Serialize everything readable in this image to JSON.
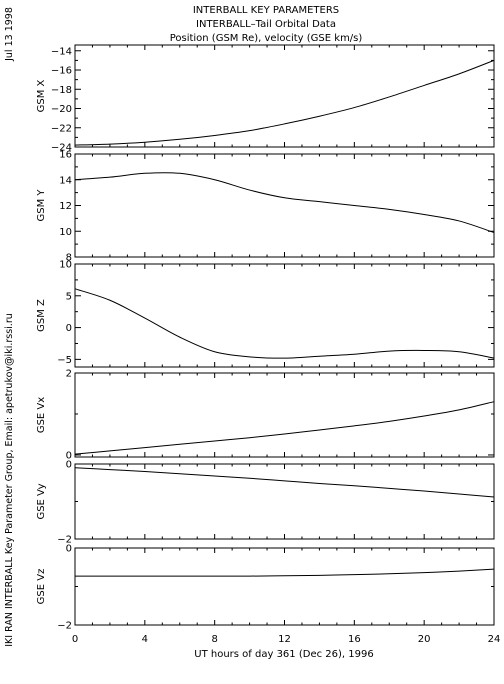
{
  "header": {
    "title_lines": [
      "INTERBALL KEY PARAMETERS",
      "INTERBALL–Tail Orbital Data",
      "Position (GSM Re), velocity (GSE km/s)"
    ],
    "date_label": "Jul 13 1998",
    "credit_label": "IKI RAN INTERBALL Key Parameter Group, Email: apetrukov@iki.rssi.ru"
  },
  "chart_data": {
    "type": "line",
    "xlabel": "UT hours of day 361 (Dec 26), 1996",
    "xlim": [
      0,
      24
    ],
    "xticks": [
      0,
      4,
      8,
      12,
      16,
      20,
      24
    ],
    "xtick_labels": [
      "0",
      "4",
      "8",
      "12",
      "16",
      "20",
      "24"
    ],
    "x": [
      0,
      2,
      4,
      6,
      8,
      10,
      12,
      14,
      16,
      18,
      20,
      22,
      24
    ],
    "panels": [
      {
        "ylabel": "GSM X",
        "ylim": [
          -24,
          -13.4
        ],
        "yticks": [
          -24,
          -22,
          -20,
          -18,
          -16,
          -14
        ],
        "ytick_labels": [
          "−24",
          "−22",
          "−20",
          "−18",
          "−16",
          "−14"
        ],
        "values": [
          -23.8,
          -23.7,
          -23.5,
          -23.2,
          -22.8,
          -22.3,
          -21.6,
          -20.8,
          -19.9,
          -18.8,
          -17.6,
          -16.4,
          -15.0
        ]
      },
      {
        "ylabel": "GSM Y",
        "ylim": [
          8,
          16
        ],
        "yticks": [
          8,
          10,
          12,
          14,
          16
        ],
        "ytick_labels": [
          "8",
          "10",
          "12",
          "14",
          "16"
        ],
        "values": [
          14.0,
          14.2,
          14.5,
          14.5,
          14.0,
          13.2,
          12.6,
          12.3,
          12.0,
          11.7,
          11.3,
          10.8,
          9.9
        ]
      },
      {
        "ylabel": "GSM Z",
        "ylim": [
          -6.2,
          10
        ],
        "yticks": [
          -5,
          0,
          5,
          10
        ],
        "ytick_labels": [
          "−5",
          "0",
          "5",
          "10"
        ],
        "values": [
          6.1,
          4.3,
          1.5,
          -1.5,
          -3.8,
          -4.6,
          -4.8,
          -4.5,
          -4.2,
          -3.7,
          -3.6,
          -3.8,
          -4.8
        ]
      },
      {
        "ylabel": "GSE Vx",
        "ylim": [
          -0.05,
          2
        ],
        "yticks": [
          0,
          2
        ],
        "ytick_labels": [
          "0",
          "2"
        ],
        "values": [
          0.02,
          0.1,
          0.18,
          0.26,
          0.34,
          0.42,
          0.51,
          0.61,
          0.71,
          0.82,
          0.95,
          1.1,
          1.3
        ]
      },
      {
        "ylabel": "GSE Vy",
        "ylim": [
          -2,
          0
        ],
        "yticks": [
          -2,
          0
        ],
        "ytick_labels": [
          "−2",
          "0"
        ],
        "values": [
          -0.1,
          -0.15,
          -0.2,
          -0.26,
          -0.32,
          -0.38,
          -0.45,
          -0.52,
          -0.58,
          -0.65,
          -0.72,
          -0.8,
          -0.88
        ]
      },
      {
        "ylabel": "GSE Vz",
        "ylim": [
          -2,
          0
        ],
        "yticks": [
          -2,
          0
        ],
        "ytick_labels": [
          "−2",
          "0"
        ],
        "values": [
          -0.73,
          -0.73,
          -0.73,
          -0.73,
          -0.73,
          -0.73,
          -0.72,
          -0.71,
          -0.69,
          -0.67,
          -0.64,
          -0.6,
          -0.55
        ]
      }
    ]
  }
}
